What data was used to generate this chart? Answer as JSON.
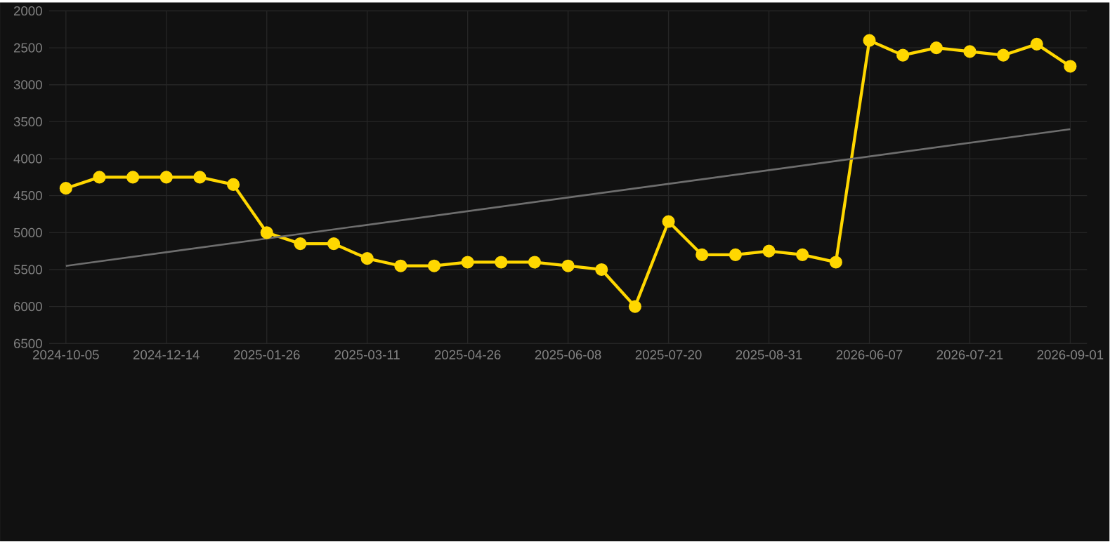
{
  "chart_data": {
    "type": "line",
    "categories": [
      "2024-10-05",
      null,
      null,
      "2024-12-14",
      null,
      null,
      "2025-01-26",
      null,
      null,
      "2025-03-11",
      null,
      null,
      "2025-04-26",
      null,
      null,
      "2025-06-08",
      null,
      null,
      "2025-07-20",
      null,
      null,
      "2025-08-31",
      null,
      null,
      "2026-06-07",
      null,
      null,
      "2026-07-21",
      null,
      null,
      "2026-09-01"
    ],
    "series": [
      {
        "color": "#ffd700",
        "marker": "circle",
        "line_style": "solid",
        "values": [
          4400,
          4250,
          4250,
          4250,
          4250,
          4350,
          5000,
          5150,
          5150,
          5350,
          5450,
          5450,
          5400,
          5400,
          5400,
          5450,
          5500,
          6000,
          4850,
          5300,
          5300,
          5250,
          5300,
          5400,
          2400,
          2600,
          2500,
          2550,
          2600,
          2450,
          2750
        ]
      },
      {
        "type": "line",
        "color": "#6e6e6e",
        "marker": "none",
        "line_style": "solid",
        "values": [
          5450,
          null,
          null,
          null,
          null,
          null,
          null,
          null,
          null,
          null,
          null,
          null,
          null,
          null,
          null,
          null,
          null,
          null,
          null,
          null,
          null,
          null,
          null,
          null,
          null,
          null,
          null,
          null,
          null,
          null,
          3600
        ]
      }
    ],
    "ylim": [
      6500,
      2000
    ],
    "yticks": [
      2000,
      2500,
      3000,
      3500,
      4000,
      4500,
      5000,
      5500,
      6000,
      6500
    ],
    "grid": true
  }
}
